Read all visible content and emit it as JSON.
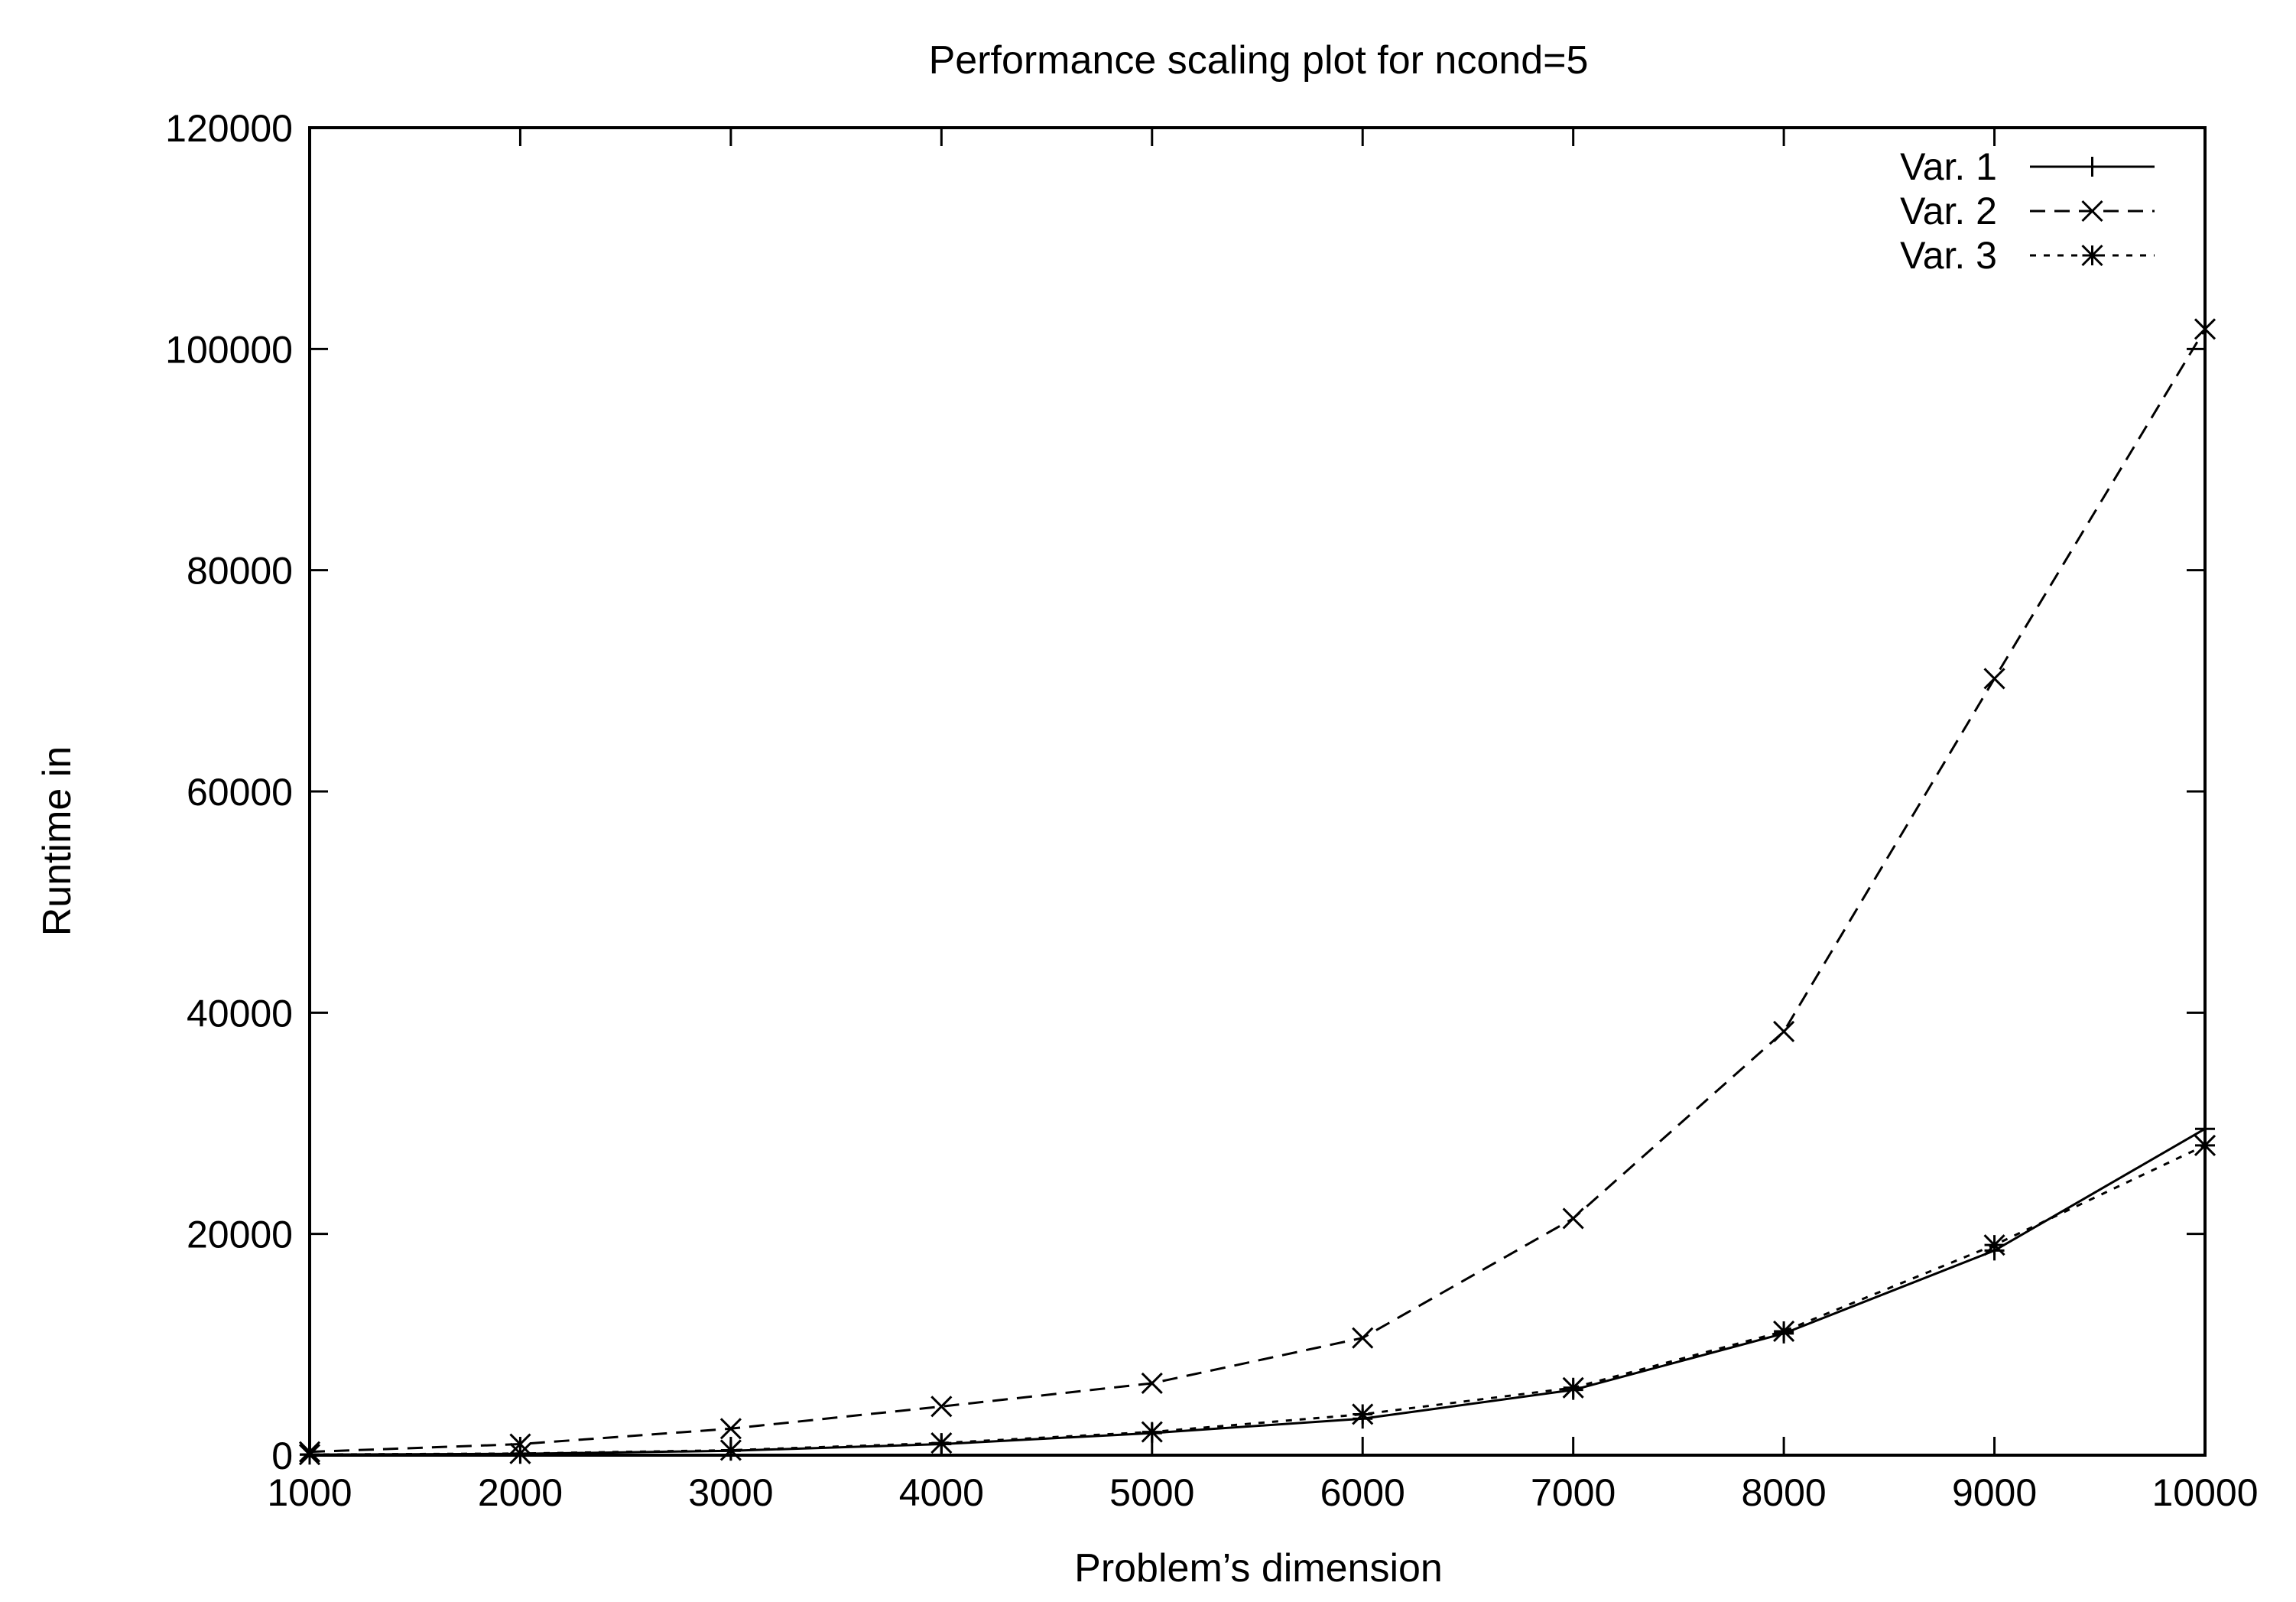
{
  "chart_data": {
    "type": "line",
    "title": "Performance scaling plot for ncond=5",
    "xlabel": "Problem’s dimension",
    "ylabel": "Runtime in",
    "xlim": [
      1000,
      10000
    ],
    "ylim": [
      0,
      120000
    ],
    "x": [
      1000,
      2000,
      3000,
      4000,
      5000,
      6000,
      7000,
      8000,
      9000,
      10000
    ],
    "xticks": [
      "1000",
      "2000",
      "3000",
      "4000",
      "5000",
      "6000",
      "7000",
      "8000",
      "9000",
      "10000"
    ],
    "yticks": [
      "0",
      "20000",
      "40000",
      "60000",
      "80000",
      "100000",
      "120000"
    ],
    "grid": false,
    "legend_position": "top-right",
    "series": [
      {
        "name": "Var. 1",
        "line_style": "solid",
        "marker": "plus",
        "values": [
          50,
          120,
          400,
          1000,
          2000,
          3300,
          5900,
          11000,
          18500,
          29500
        ]
      },
      {
        "name": "Var. 2",
        "line_style": "dashed",
        "marker": "cross",
        "values": [
          300,
          1000,
          2400,
          4400,
          6500,
          10600,
          21400,
          38300,
          70200,
          101800
        ]
      },
      {
        "name": "Var. 3",
        "line_style": "dotted",
        "marker": "star",
        "values": [
          60,
          150,
          450,
          1100,
          2100,
          3700,
          6100,
          11200,
          19000,
          28000
        ]
      }
    ],
    "colors": {
      "line": "#000000",
      "background": "#ffffff"
    }
  }
}
